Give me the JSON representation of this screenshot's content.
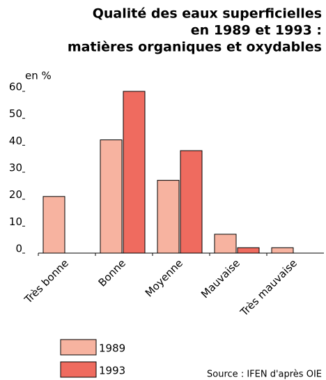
{
  "chart_data": {
    "type": "bar",
    "title": [
      "Qualité des eaux superficielles",
      "en 1989 et 1993 :",
      "matières organiques et oxydables"
    ],
    "y_label": "en %",
    "categories": [
      "Très bonne",
      "Bonne",
      "Moyenne",
      "Mauvaise",
      "Très mauvaise"
    ],
    "series": [
      {
        "name": "1989",
        "color": "#f7b3a0",
        "values": [
          21,
          42,
          27,
          7,
          2
        ]
      },
      {
        "name": "1993",
        "color": "#ef6b5f",
        "values": [
          0,
          60,
          38,
          2,
          0
        ]
      }
    ],
    "ylim": [
      0,
      60
    ],
    "yticks": [
      0,
      10,
      20,
      30,
      40,
      50,
      60
    ],
    "source": "Source : IFEN d'après OIE"
  }
}
